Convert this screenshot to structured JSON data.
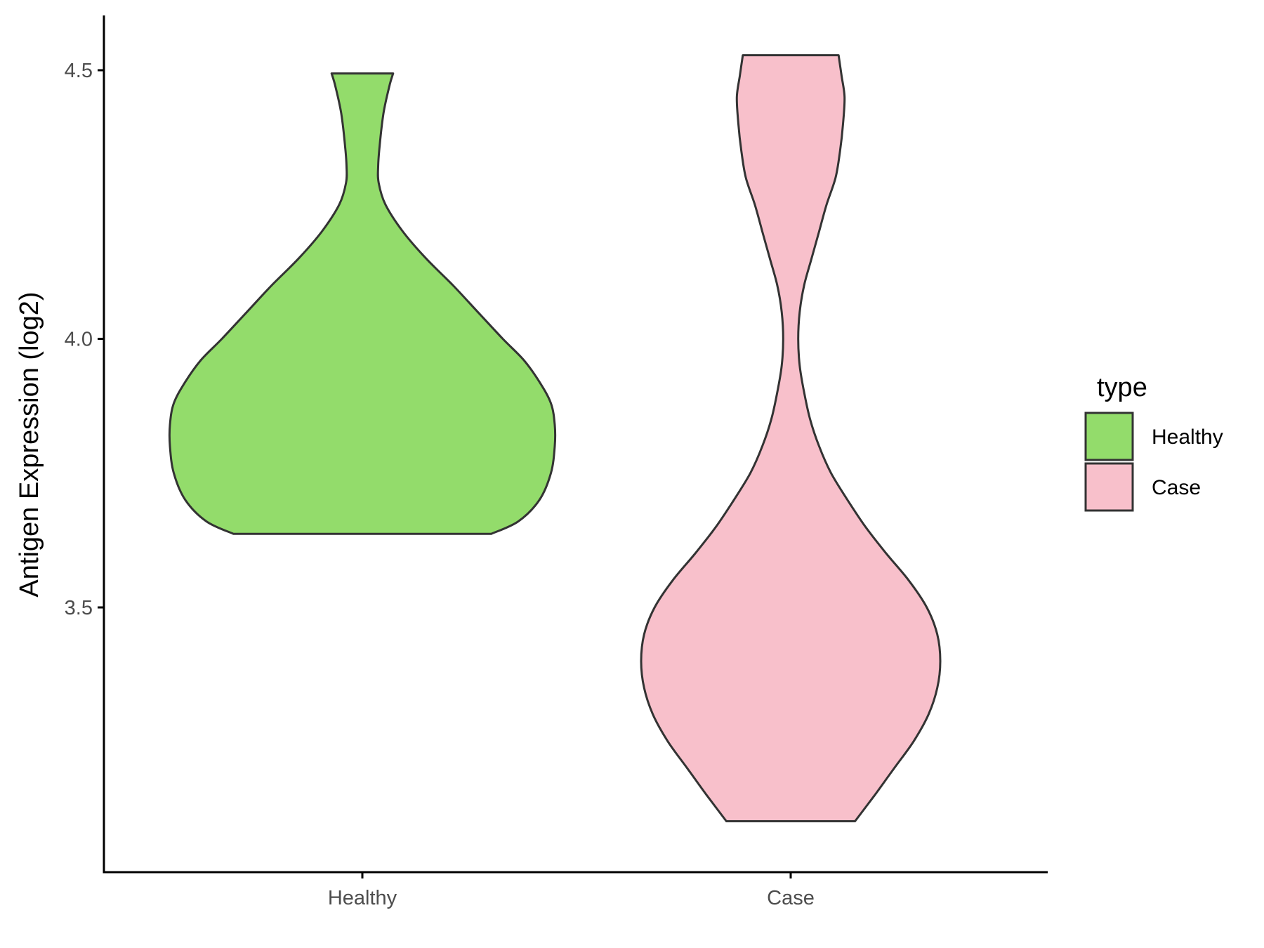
{
  "chart_data": {
    "type": "violin",
    "title": "",
    "xlabel": "",
    "ylabel": "Antigen Expression (log2)",
    "categories": [
      "Healthy",
      "Case"
    ],
    "ylim": [
      3.0,
      4.6
    ],
    "yticks": [
      3.5,
      4.0,
      4.5
    ],
    "ytick_labels": [
      "3.5",
      "4.0",
      "4.5"
    ],
    "grid": false,
    "legend": {
      "title": "type",
      "position": "right",
      "entries": [
        {
          "label": "Healthy",
          "color": "#93DC6B"
        },
        {
          "label": "Case",
          "color": "#F8C0CB"
        }
      ]
    },
    "series": [
      {
        "name": "Healthy",
        "color": "#93DC6B",
        "min": 3.637,
        "max": 4.494,
        "density": [
          [
            3.637,
            0.67
          ],
          [
            3.66,
            0.81
          ],
          [
            3.7,
            0.92
          ],
          [
            3.75,
            0.98
          ],
          [
            3.8,
            1.0
          ],
          [
            3.84,
            1.0
          ],
          [
            3.88,
            0.98
          ],
          [
            3.92,
            0.92
          ],
          [
            3.96,
            0.84
          ],
          [
            4.0,
            0.73
          ],
          [
            4.05,
            0.6
          ],
          [
            4.1,
            0.47
          ],
          [
            4.15,
            0.33
          ],
          [
            4.2,
            0.21
          ],
          [
            4.25,
            0.12
          ],
          [
            4.29,
            0.085
          ],
          [
            4.32,
            0.082
          ],
          [
            4.36,
            0.09
          ],
          [
            4.42,
            0.11
          ],
          [
            4.47,
            0.14
          ],
          [
            4.494,
            0.16
          ]
        ]
      },
      {
        "name": "Case",
        "color": "#F8C0CB",
        "min": 3.102,
        "max": 4.528,
        "density": [
          [
            3.102,
            0.43
          ],
          [
            3.15,
            0.56
          ],
          [
            3.2,
            0.69
          ],
          [
            3.25,
            0.82
          ],
          [
            3.3,
            0.92
          ],
          [
            3.35,
            0.98
          ],
          [
            3.4,
            1.0
          ],
          [
            3.45,
            0.98
          ],
          [
            3.5,
            0.91
          ],
          [
            3.55,
            0.79
          ],
          [
            3.6,
            0.64
          ],
          [
            3.65,
            0.5
          ],
          [
            3.7,
            0.38
          ],
          [
            3.75,
            0.27
          ],
          [
            3.8,
            0.19
          ],
          [
            3.85,
            0.13
          ],
          [
            3.9,
            0.09
          ],
          [
            3.95,
            0.06
          ],
          [
            4.0,
            0.05
          ],
          [
            4.05,
            0.06
          ],
          [
            4.1,
            0.09
          ],
          [
            4.15,
            0.14
          ],
          [
            4.2,
            0.19
          ],
          [
            4.25,
            0.24
          ],
          [
            4.3,
            0.3
          ],
          [
            4.35,
            0.33
          ],
          [
            4.4,
            0.35
          ],
          [
            4.45,
            0.36
          ],
          [
            4.49,
            0.34
          ],
          [
            4.528,
            0.32
          ]
        ]
      }
    ]
  }
}
